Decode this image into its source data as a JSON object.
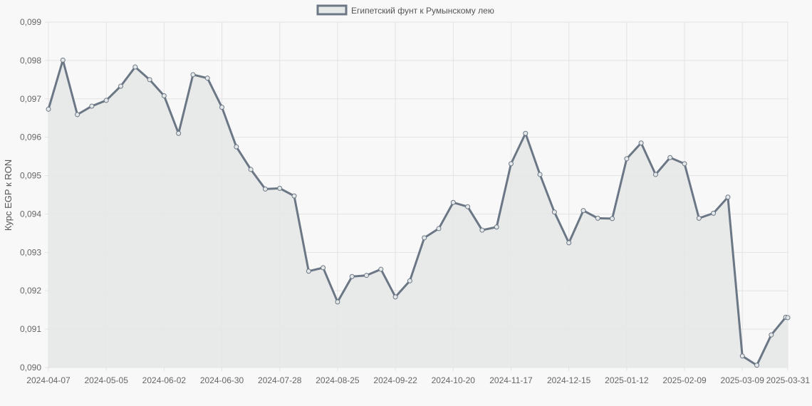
{
  "chart_data": {
    "type": "area",
    "title": "",
    "xlabel": "",
    "ylabel": "Курс EGP к RON",
    "ylim": [
      0.09,
      0.099
    ],
    "grid": true,
    "legend_position": "top",
    "colors": {
      "line": "#6b7785",
      "fill": "#e5e8e8",
      "grid": "#e3e3e3",
      "background": "#f8f8f8"
    },
    "y_ticks": [
      "0,099",
      "0,098",
      "0,097",
      "0,096",
      "0,095",
      "0,094",
      "0,093",
      "0,092",
      "0,091",
      "0,090"
    ],
    "x_ticks": [
      "2024-04-07",
      "2024-05-05",
      "2024-06-02",
      "2024-06-30",
      "2024-07-28",
      "2024-08-25",
      "2024-09-22",
      "2024-10-20",
      "2024-11-17",
      "2024-12-15",
      "2025-01-12",
      "2025-02-09",
      "2025-03-09",
      "2025-03-31"
    ],
    "series": [
      {
        "name": "Египетский фунт к Румынскому лею",
        "x": [
          "2024-04-07",
          "2024-04-14",
          "2024-04-21",
          "2024-04-28",
          "2024-05-05",
          "2024-05-12",
          "2024-05-19",
          "2024-05-26",
          "2024-06-02",
          "2024-06-09",
          "2024-06-16",
          "2024-06-23",
          "2024-06-30",
          "2024-07-07",
          "2024-07-14",
          "2024-07-21",
          "2024-07-28",
          "2024-08-04",
          "2024-08-11",
          "2024-08-18",
          "2024-08-25",
          "2024-09-01",
          "2024-09-08",
          "2024-09-15",
          "2024-09-22",
          "2024-09-29",
          "2024-10-06",
          "2024-10-13",
          "2024-10-20",
          "2024-10-27",
          "2024-11-03",
          "2024-11-10",
          "2024-11-17",
          "2024-11-24",
          "2024-12-01",
          "2024-12-08",
          "2024-12-15",
          "2024-12-22",
          "2024-12-29",
          "2025-01-05",
          "2025-01-12",
          "2025-01-19",
          "2025-01-26",
          "2025-02-02",
          "2025-02-09",
          "2025-02-16",
          "2025-02-23",
          "2025-03-02",
          "2025-03-09",
          "2025-03-16",
          "2025-03-23",
          "2025-03-30",
          "2025-03-31"
        ],
        "values": [
          0.09673,
          0.09801,
          0.09659,
          0.09681,
          0.09696,
          0.09733,
          0.09783,
          0.0975,
          0.09708,
          0.0961,
          0.09763,
          0.09754,
          0.09678,
          0.09575,
          0.09516,
          0.09465,
          0.09467,
          0.09447,
          0.09251,
          0.0926,
          0.09171,
          0.09237,
          0.0924,
          0.09256,
          0.09184,
          0.09226,
          0.09338,
          0.09362,
          0.0943,
          0.09419,
          0.09358,
          0.09366,
          0.09531,
          0.0961,
          0.09503,
          0.09405,
          0.09325,
          0.09409,
          0.09389,
          0.09388,
          0.09544,
          0.09585,
          0.09503,
          0.09547,
          0.09531,
          0.09389,
          0.09402,
          0.09444,
          0.0903,
          0.09006,
          0.09085,
          0.09131,
          0.0913
        ]
      }
    ]
  }
}
